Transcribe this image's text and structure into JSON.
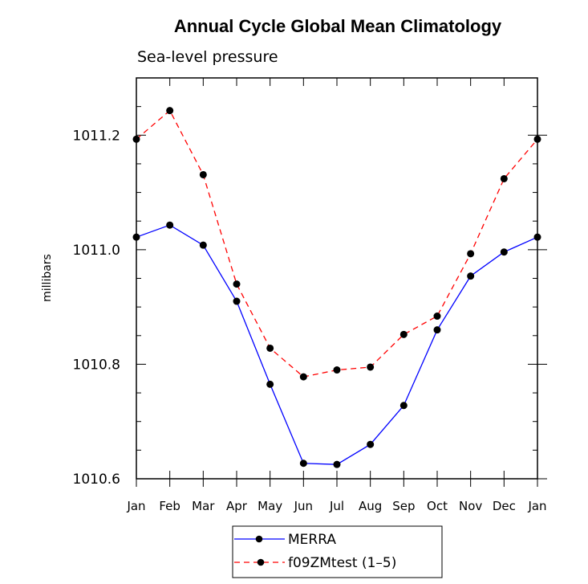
{
  "chart_data": {
    "type": "line",
    "title": "Annual Cycle Global Mean Climatology",
    "subtitle": "Sea-level pressure",
    "xlabel": "",
    "ylabel": "millibars",
    "categories": [
      "Jan",
      "Feb",
      "Mar",
      "Apr",
      "May",
      "Jun",
      "Jul",
      "Aug",
      "Sep",
      "Oct",
      "Nov",
      "Dec",
      "Jan"
    ],
    "ylim": [
      1010.6,
      1011.3
    ],
    "yticks": [
      1010.6,
      1010.8,
      1011.0,
      1011.2
    ],
    "ytick_labels": [
      "1010.6",
      "1010.8",
      "1011.0",
      "1011.2"
    ],
    "grid": false,
    "legend_position": "bottom-center",
    "series": [
      {
        "name": "MERRA",
        "color": "#0000ff",
        "dashed": false,
        "values": [
          1011.022,
          1011.043,
          1011.008,
          1010.91,
          1010.765,
          1010.627,
          1010.625,
          1010.66,
          1010.728,
          1010.86,
          1010.954,
          1010.996,
          1011.022
        ]
      },
      {
        "name": "f09ZMtest (1–5)",
        "color": "#ff0000",
        "dashed": true,
        "values": [
          1011.193,
          1011.243,
          1011.131,
          1010.94,
          1010.828,
          1010.778,
          1010.79,
          1010.795,
          1010.852,
          1010.884,
          1010.993,
          1011.124,
          1011.193
        ]
      }
    ]
  }
}
